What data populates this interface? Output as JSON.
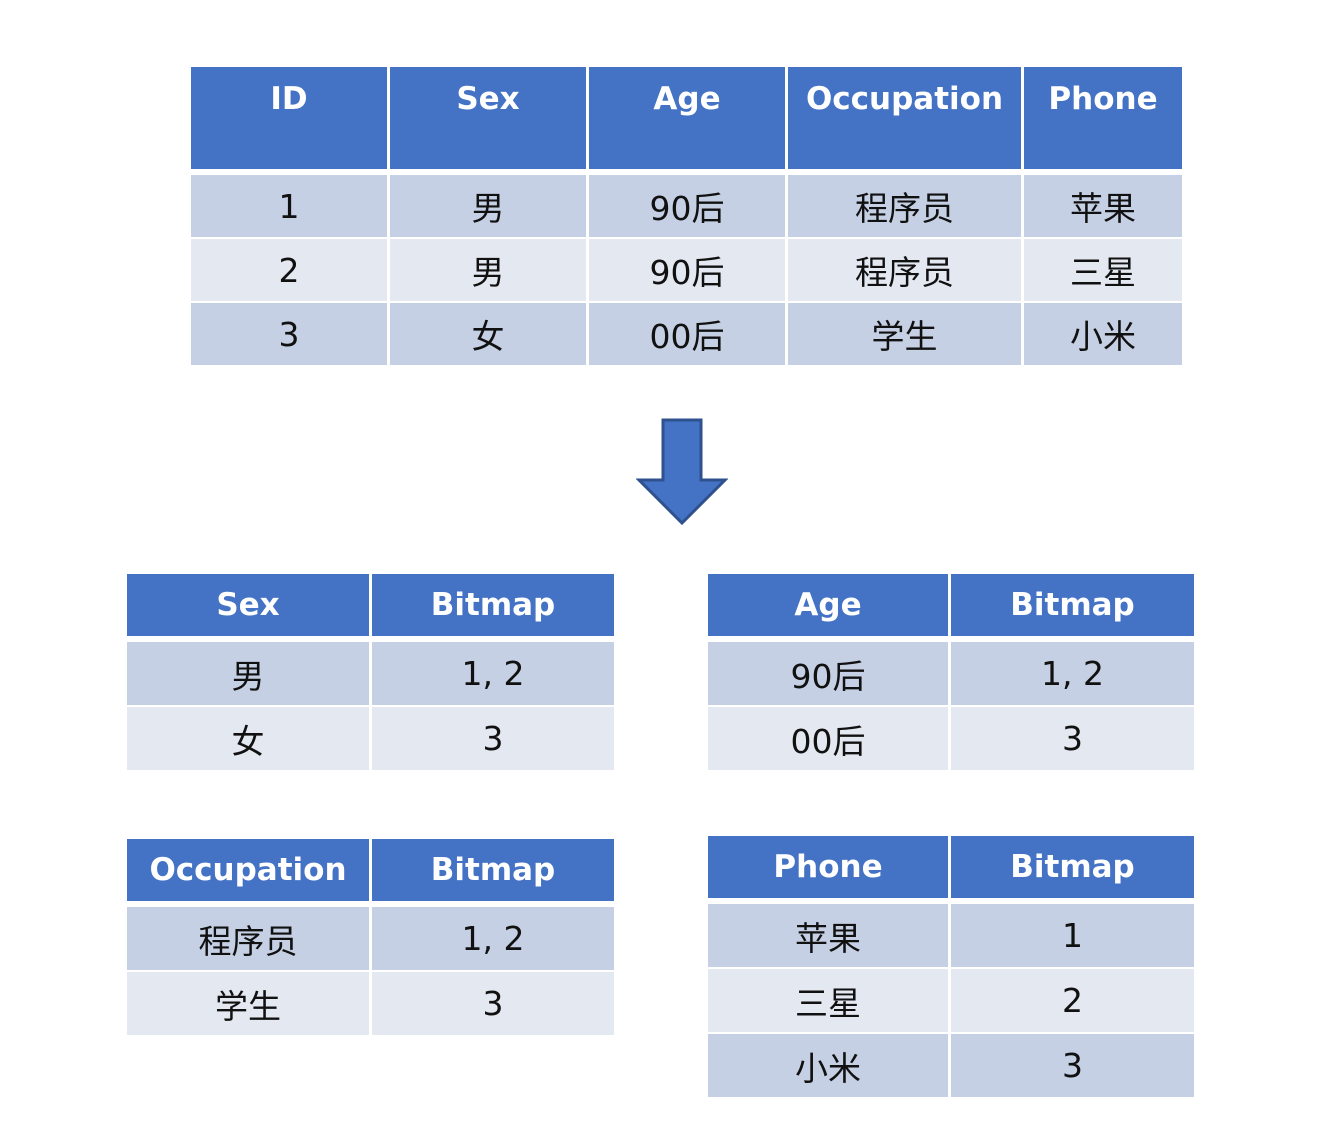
{
  "main_table": {
    "headers": [
      "ID",
      "Sex",
      "Age",
      "Occupation",
      "Phone"
    ],
    "rows": [
      [
        "1",
        "男",
        "90后",
        "程序员",
        "苹果"
      ],
      [
        "2",
        "男",
        "90后",
        "程序员",
        "三星"
      ],
      [
        "3",
        "女",
        "00后",
        "学生",
        "小米"
      ]
    ]
  },
  "arrow_icon": "down-arrow-icon",
  "sex_bitmap": {
    "headers": [
      "Sex",
      "Bitmap"
    ],
    "rows": [
      [
        "男",
        "1, 2"
      ],
      [
        "女",
        "3"
      ]
    ]
  },
  "age_bitmap": {
    "headers": [
      "Age",
      "Bitmap"
    ],
    "rows": [
      [
        "90后",
        "1, 2"
      ],
      [
        "00后",
        "3"
      ]
    ]
  },
  "occupation_bitmap": {
    "headers": [
      "Occupation",
      "Bitmap"
    ],
    "rows": [
      [
        "程序员",
        "1, 2"
      ],
      [
        "学生",
        "3"
      ]
    ]
  },
  "phone_bitmap": {
    "headers": [
      "Phone",
      "Bitmap"
    ],
    "rows": [
      [
        "苹果",
        "1"
      ],
      [
        "三星",
        "2"
      ],
      [
        "小米",
        "3"
      ]
    ]
  },
  "colors": {
    "header_blue": "#4472c4",
    "row_dark": "#c5d0e4",
    "row_light": "#e3e8f1",
    "arrow_fill": "#4472c4",
    "arrow_stroke": "#2f528f"
  }
}
